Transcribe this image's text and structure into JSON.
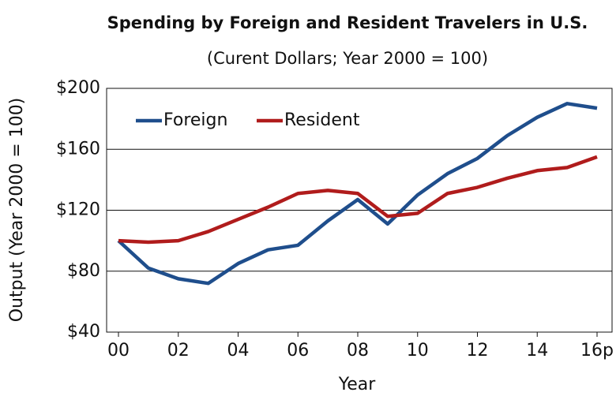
{
  "chart_data": {
    "type": "line",
    "title": "Spending by Foreign and Resident Travelers in U.S.",
    "subtitle": "(Curent Dollars; Year 2000 = 100)",
    "x_label": "Year",
    "y_label": "Output (Year 2000 = 100)",
    "categories": [
      "00",
      null,
      "02",
      null,
      "04",
      null,
      "06",
      null,
      "08",
      null,
      "10",
      null,
      "12",
      null,
      "14",
      null,
      "16p"
    ],
    "series": [
      {
        "name": "Foreign",
        "color": "#1f4e8c",
        "values": [
          100,
          82,
          75,
          72,
          85,
          94,
          97,
          113,
          127,
          111,
          130,
          144,
          154,
          169,
          181,
          190,
          187
        ]
      },
      {
        "name": "Resident",
        "color": "#b01c1c",
        "values": [
          100,
          99,
          100,
          106,
          114,
          122,
          131,
          133,
          131,
          116,
          118,
          131,
          135,
          141,
          146,
          148,
          155
        ]
      }
    ],
    "ylim": [
      40,
      200
    ],
    "yticks": [
      {
        "value": 40,
        "label": "$40"
      },
      {
        "value": 80,
        "label": "$80"
      },
      {
        "value": 120,
        "label": "$120"
      },
      {
        "value": 160,
        "label": "$160"
      },
      {
        "value": 200,
        "label": "$200"
      }
    ],
    "grid": true,
    "legend": "upper-left"
  }
}
